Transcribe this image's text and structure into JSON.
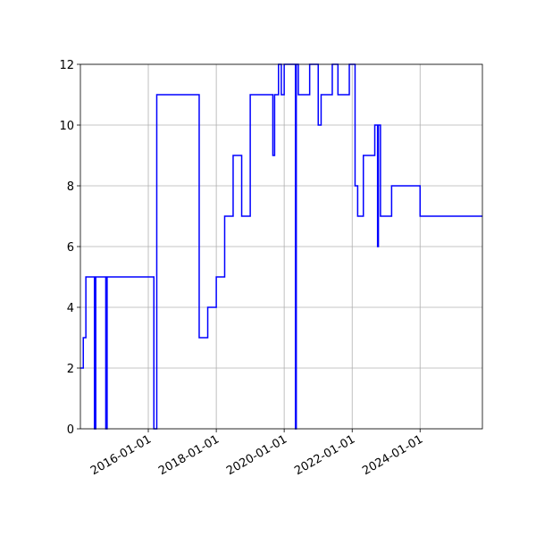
{
  "chart_data": {
    "type": "line",
    "drawstyle": "steps-post",
    "grid": true,
    "x": [
      "2014-01-01",
      "2014-02-01",
      "2014-03-01",
      "2014-06-01",
      "2014-06-15",
      "2014-10-01",
      "2014-10-15",
      "2016-03-01",
      "2016-04-01",
      "2017-07-01",
      "2017-10-01",
      "2018-01-01",
      "2018-04-01",
      "2018-07-01",
      "2018-10-01",
      "2019-01-01",
      "2019-09-01",
      "2019-09-20",
      "2019-11-01",
      "2019-12-01",
      "2020-01-01",
      "2020-05-01",
      "2020-05-10",
      "2020-06-01",
      "2020-10-01",
      "2021-01-01",
      "2021-02-01",
      "2021-06-01",
      "2021-08-01",
      "2021-12-01",
      "2022-02-01",
      "2022-03-01",
      "2022-05-01",
      "2022-09-01",
      "2022-10-01",
      "2022-10-10",
      "2022-11-01",
      "2023-03-01",
      "2024-01-01"
    ],
    "series": [
      {
        "color": "#0000ff",
        "values": [
          2,
          3,
          5,
          0,
          5,
          0,
          5,
          0,
          11,
          3,
          4,
          5,
          7,
          9,
          7,
          11,
          9,
          11,
          12,
          11,
          12,
          0,
          12,
          11,
          12,
          10,
          11,
          12,
          11,
          12,
          8,
          7,
          9,
          10,
          6,
          10,
          7,
          8,
          7
        ]
      }
    ],
    "xlim": [
      "2014-01-01",
      "2025-11-01"
    ],
    "xticks": [
      "2016-01-01",
      "2018-01-01",
      "2020-01-01",
      "2022-01-01",
      "2024-01-01"
    ],
    "ylim": [
      0,
      12
    ],
    "yticks": [
      0,
      2,
      4,
      6,
      8,
      10,
      12
    ]
  }
}
